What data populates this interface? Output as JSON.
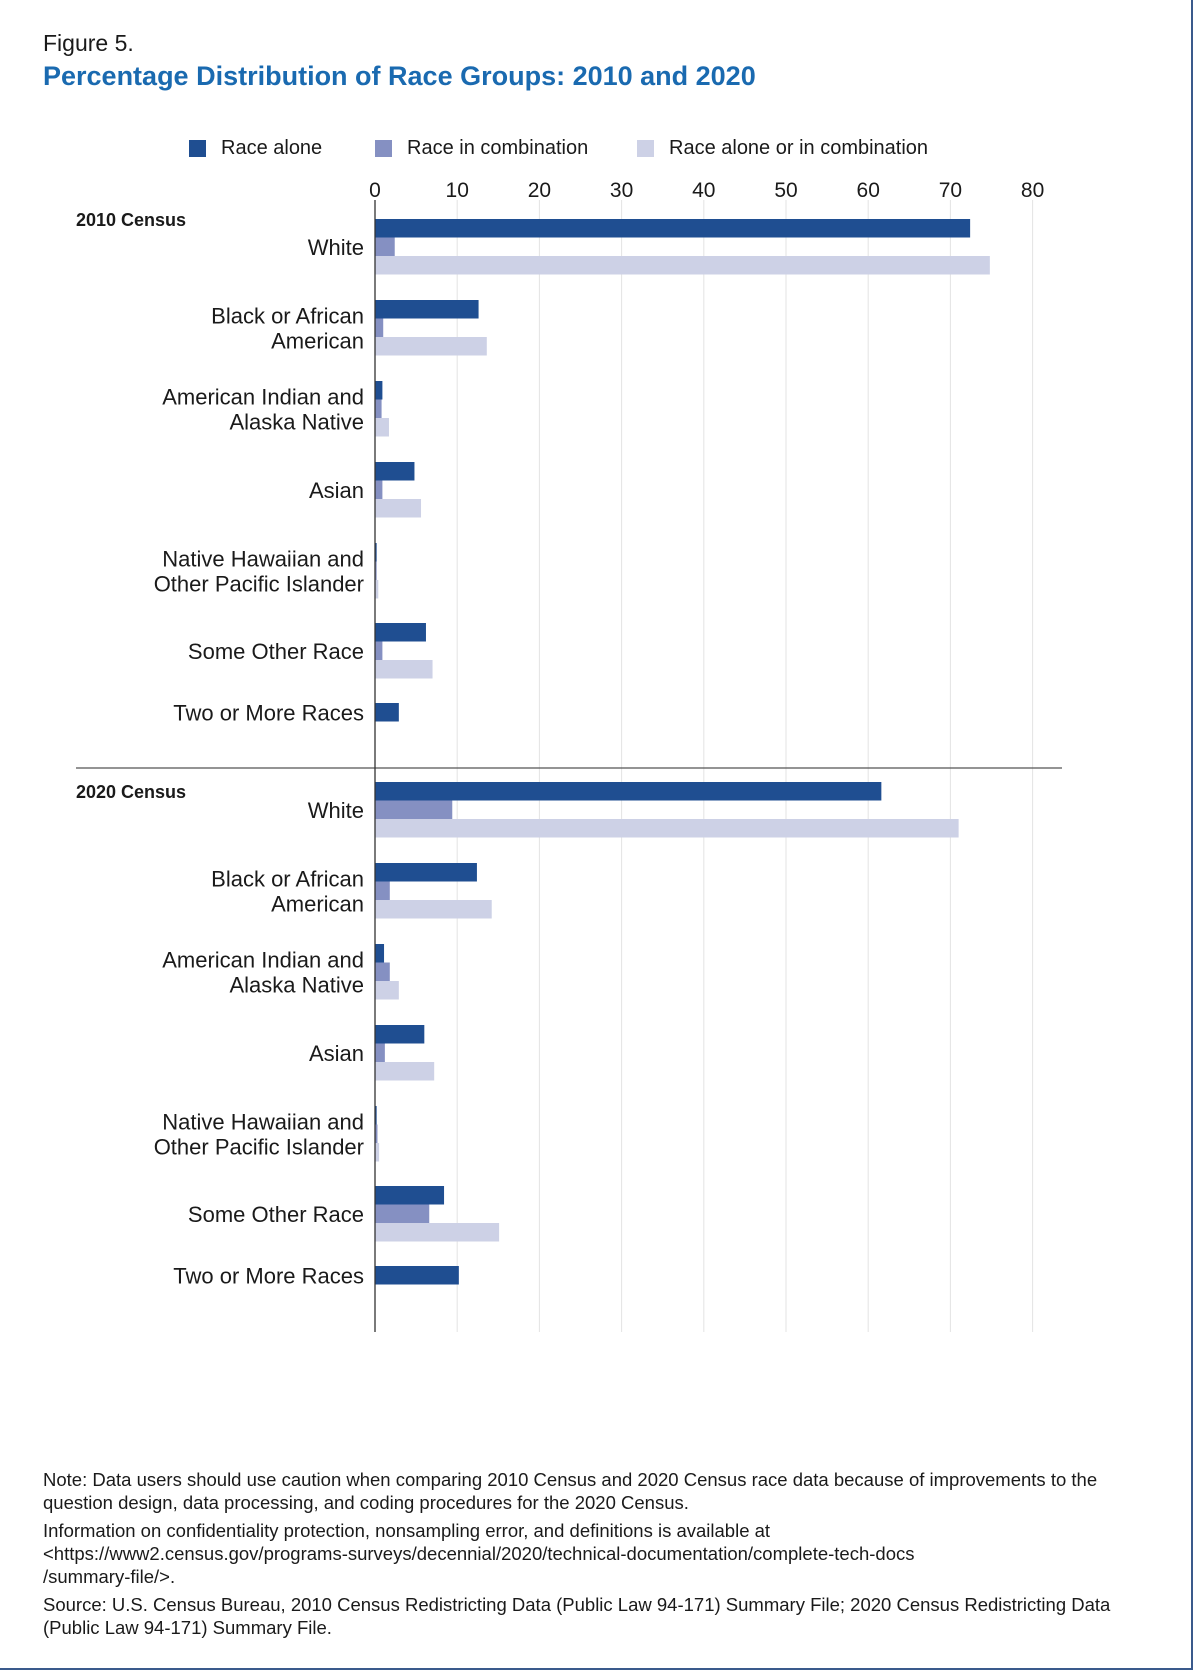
{
  "figure_label": "Figure 5.",
  "title": "Percentage Distribution of Race Groups: 2010 and 2020",
  "colors": {
    "race_alone": "#1f4e91",
    "race_in_combination": "#8590c2",
    "race_alone_or_in_combination": "#cdd1e6",
    "title": "#1a6ab0",
    "gridline": "#e3e3e3",
    "axis": "#333333"
  },
  "chart_data": {
    "type": "bar",
    "orientation": "horizontal",
    "xlim": [
      0,
      80
    ],
    "xticks": [
      "0",
      "10",
      "20",
      "30",
      "40",
      "50",
      "60",
      "70",
      "80"
    ],
    "grid": true,
    "legend_position": "top",
    "legend": [
      "Race alone",
      "Race in combination",
      "Race alone or in combination"
    ],
    "groups": [
      {
        "label": "2010 Census",
        "categories": [
          {
            "label": [
              "White"
            ],
            "values": [
              72.4,
              2.4,
              74.8
            ]
          },
          {
            "label": [
              "Black or African",
              "American"
            ],
            "values": [
              12.6,
              1.0,
              13.6
            ]
          },
          {
            "label": [
              "American Indian and",
              "Alaska Native"
            ],
            "values": [
              0.9,
              0.8,
              1.7
            ]
          },
          {
            "label": [
              "Asian"
            ],
            "values": [
              4.8,
              0.9,
              5.6
            ]
          },
          {
            "label": [
              "Native Hawaiian and",
              "Other Pacific Islander"
            ],
            "values": [
              0.2,
              0.2,
              0.4
            ]
          },
          {
            "label": [
              "Some Other Race"
            ],
            "values": [
              6.2,
              0.9,
              7.0
            ]
          },
          {
            "label": [
              "Two or More Races"
            ],
            "values": [
              2.9
            ]
          }
        ]
      },
      {
        "label": "2020 Census",
        "categories": [
          {
            "label": [
              "White"
            ],
            "values": [
              61.6,
              9.4,
              71.0
            ]
          },
          {
            "label": [
              "Black or African",
              "American"
            ],
            "values": [
              12.4,
              1.8,
              14.2
            ]
          },
          {
            "label": [
              "American Indian and",
              "Alaska Native"
            ],
            "values": [
              1.1,
              1.8,
              2.9
            ]
          },
          {
            "label": [
              "Asian"
            ],
            "values": [
              6.0,
              1.2,
              7.2
            ]
          },
          {
            "label": [
              "Native Hawaiian and",
              "Other Pacific Islander"
            ],
            "values": [
              0.2,
              0.3,
              0.5
            ]
          },
          {
            "label": [
              "Some Other Race"
            ],
            "values": [
              8.4,
              6.6,
              15.1
            ]
          },
          {
            "label": [
              "Two or More Races"
            ],
            "values": [
              10.2
            ]
          }
        ]
      }
    ]
  },
  "notes": {
    "note": "Note: Data users should use caution when comparing 2010 Census and 2020 Census race data because of improvements to the question design, data processing, and coding procedures for the 2020 Census.",
    "info_line1": "Information on confidentiality protection, nonsampling error, and definitions is available at",
    "info_line2": "<https://www2.census.gov/programs-surveys/decennial/2020/technical-documentation/complete-tech-docs",
    "info_line3": "/summary-file/>.",
    "source": "Source: U.S. Census Bureau, 2010 Census Redistricting Data (Public Law 94-171) Summary File; 2020 Census Redistricting Data (Public Law 94-171) Summary File."
  }
}
